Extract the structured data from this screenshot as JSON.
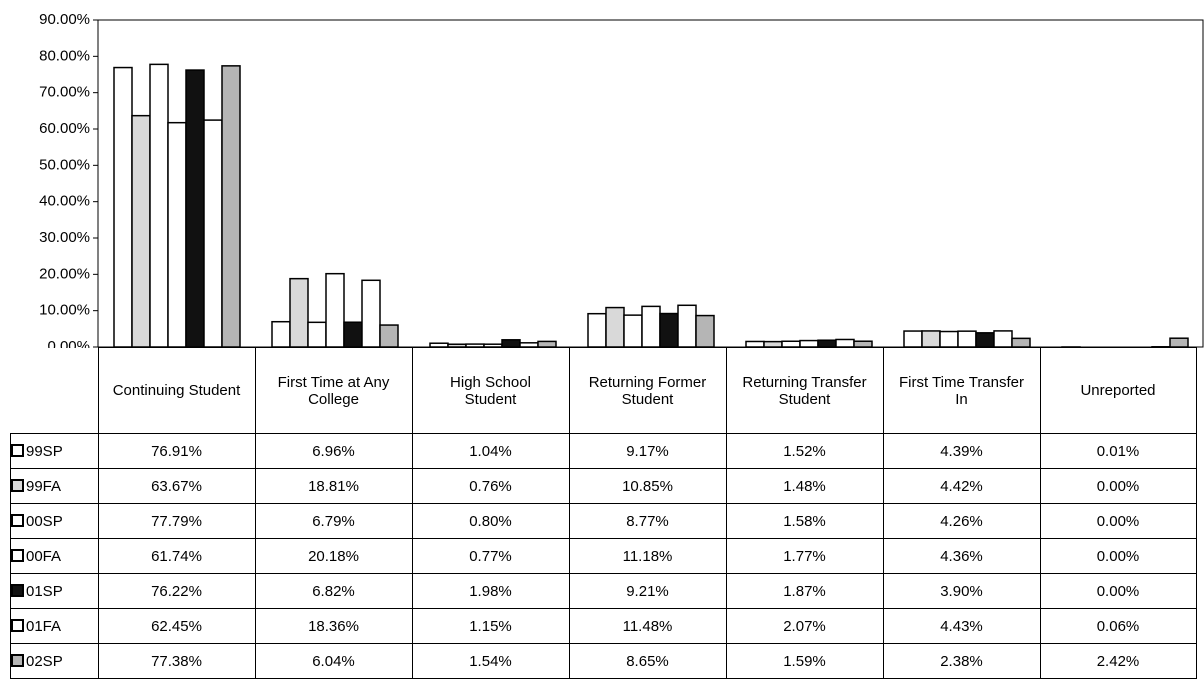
{
  "chart_data": {
    "type": "bar",
    "categories": [
      "Continuing Student",
      "First Time at Any College",
      "High School Student",
      "Returning Former Student",
      "Returning Transfer Student",
      "First Time Transfer In",
      "Unreported"
    ],
    "series": [
      {
        "name": "99SP",
        "color": "#ffffff",
        "values": [
          76.91,
          6.96,
          1.04,
          9.17,
          1.52,
          4.39,
          0.01
        ],
        "value_labels": [
          "76.91%",
          "6.96%",
          "1.04%",
          "9.17%",
          "1.52%",
          "4.39%",
          "0.01%"
        ]
      },
      {
        "name": "99FA",
        "color": "#d9d9d9",
        "values": [
          63.67,
          18.81,
          0.76,
          10.85,
          1.48,
          4.42,
          0.0
        ],
        "value_labels": [
          "63.67%",
          "18.81%",
          "0.76%",
          "10.85%",
          "1.48%",
          "4.42%",
          "0.00%"
        ]
      },
      {
        "name": "00SP",
        "color": "#ffffff",
        "values": [
          77.79,
          6.79,
          0.8,
          8.77,
          1.58,
          4.26,
          0.0
        ],
        "value_labels": [
          "77.79%",
          "6.79%",
          "0.80%",
          "8.77%",
          "1.58%",
          "4.26%",
          "0.00%"
        ]
      },
      {
        "name": "00FA",
        "color": "#ffffff",
        "values": [
          61.74,
          20.18,
          0.77,
          11.18,
          1.77,
          4.36,
          0.0
        ],
        "value_labels": [
          "61.74%",
          "20.18%",
          "0.77%",
          "11.18%",
          "1.77%",
          "4.36%",
          "0.00%"
        ]
      },
      {
        "name": "01SP",
        "color": "#111111",
        "values": [
          76.22,
          6.82,
          1.98,
          9.21,
          1.87,
          3.9,
          0.0
        ],
        "value_labels": [
          "76.22%",
          "6.82%",
          "1.98%",
          "9.21%",
          "1.87%",
          "3.90%",
          "0.00%"
        ]
      },
      {
        "name": "01FA",
        "color": "#ffffff",
        "values": [
          62.45,
          18.36,
          1.15,
          11.48,
          2.07,
          4.43,
          0.06
        ],
        "value_labels": [
          "62.45%",
          "18.36%",
          "1.15%",
          "11.48%",
          "2.07%",
          "4.43%",
          "0.06%"
        ]
      },
      {
        "name": "02SP",
        "color": "#b5b5b5",
        "values": [
          77.38,
          6.04,
          1.54,
          8.65,
          1.59,
          2.38,
          2.42
        ],
        "value_labels": [
          "77.38%",
          "6.04%",
          "1.54%",
          "8.65%",
          "1.59%",
          "2.38%",
          "2.42%"
        ]
      }
    ],
    "ylim": [
      0,
      90
    ],
    "yticks": [
      {
        "value": 0,
        "label": "0.00%"
      },
      {
        "value": 10,
        "label": "10.00%"
      },
      {
        "value": 20,
        "label": "20.00%"
      },
      {
        "value": 30,
        "label": "30.00%"
      },
      {
        "value": 40,
        "label": "40.00%"
      },
      {
        "value": 50,
        "label": "50.00%"
      },
      {
        "value": 60,
        "label": "60.00%"
      },
      {
        "value": 70,
        "label": "70.00%"
      },
      {
        "value": 80,
        "label": "80.00%"
      },
      {
        "value": 90,
        "label": "90.00%"
      }
    ],
    "grid": false
  }
}
